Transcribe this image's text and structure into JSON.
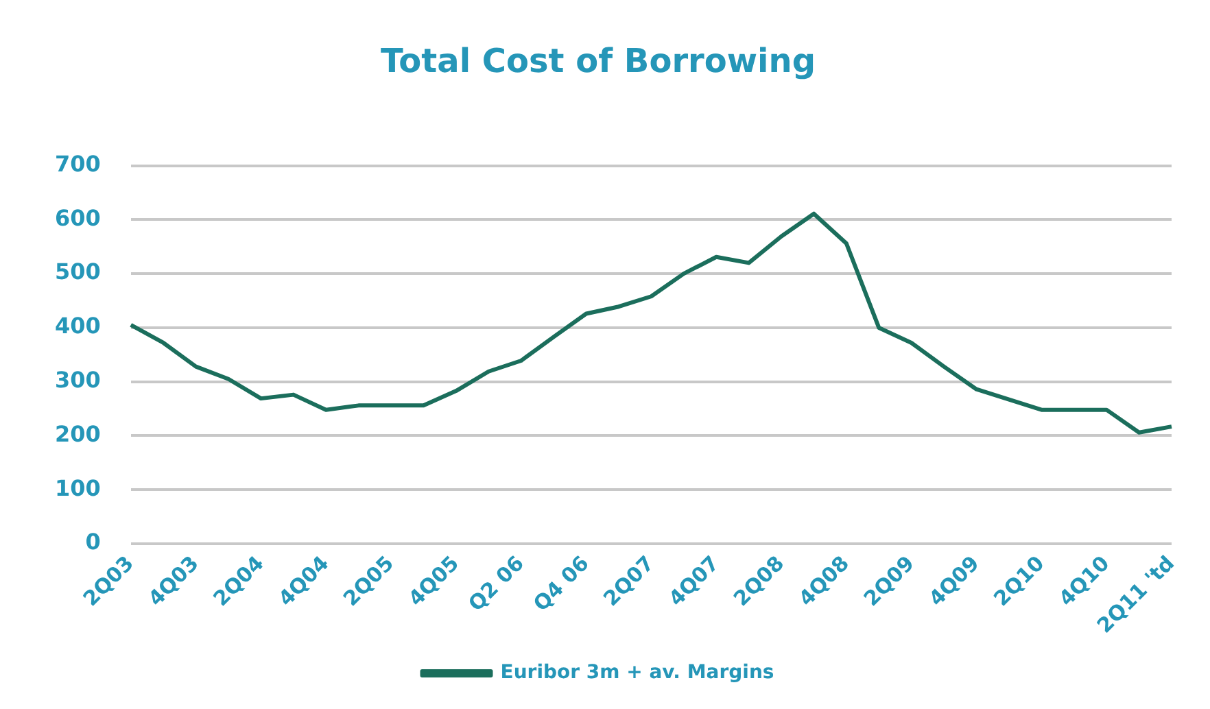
{
  "chart_data": {
    "type": "line",
    "title": "Total Cost of Borrowing",
    "categories": [
      "2Q03",
      null,
      "4Q03",
      null,
      "2Q04",
      null,
      "4Q04",
      null,
      "2Q05",
      null,
      "4Q05",
      null,
      "Q2 06",
      null,
      "Q4 06",
      null,
      "2Q07",
      null,
      "4Q07",
      null,
      "2Q08",
      null,
      "4Q08",
      null,
      "2Q09",
      null,
      "4Q09",
      null,
      "2Q10",
      null,
      "4Q10",
      null,
      "2Q11 'td"
    ],
    "series": [
      {
        "name": "Euribor 3m + av. Margins",
        "color": "#1b6e5c",
        "values": [
          405,
          372,
          328,
          305,
          269,
          276,
          248,
          256,
          256,
          256,
          283,
          319,
          339,
          383,
          426,
          439,
          458,
          500,
          531,
          520,
          569,
          611,
          556,
          400,
          372,
          328,
          286,
          267,
          248,
          248,
          248,
          206,
          217
        ]
      }
    ],
    "ylim": [
      0,
      700
    ],
    "yticks": [
      0,
      100,
      200,
      300,
      400,
      500,
      600,
      700
    ],
    "grid": "y",
    "legend": "bottom",
    "marker": "none",
    "line_style": "solid"
  }
}
